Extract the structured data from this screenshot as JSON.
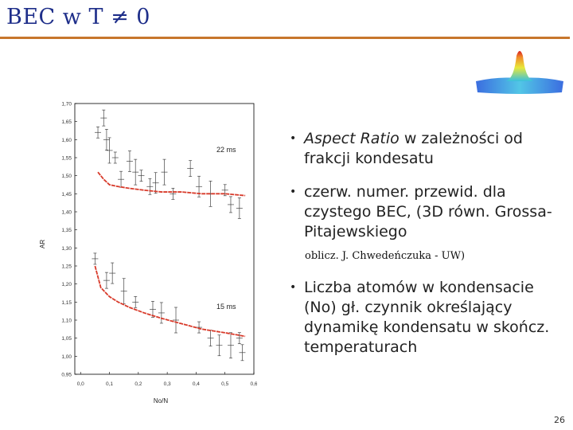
{
  "slide": {
    "title": "BEC w T ≠ 0",
    "page_number": "26",
    "colors": {
      "title": "#1f2f8a",
      "rule": "#c7762c",
      "fit_line": "#d83a2a"
    }
  },
  "bullets": [
    {
      "italic": "Aspect Ratio",
      "text": " w zależności od frakcji kondesatu"
    },
    {
      "text": "czerw. numer. przewid. dla czystego BEC, (3D równ. Grossa-Pitajewskiego"
    },
    {
      "text": "Liczba atomów w kondensacie (No) gł. czynnik określający dynamikę kondensatu w skończ. temperaturach"
    }
  ],
  "credit": "oblicz. J. Chwedeńczuka - UW)",
  "chart_data": {
    "type": "scatter",
    "xlabel": "No/N",
    "ylabel": "AR",
    "xlim": [
      -0.02,
      0.6
    ],
    "ylim": [
      0.95,
      1.7
    ],
    "x_ticks": [
      "0,0",
      "0,1",
      "0,2",
      "0,3",
      "0,4",
      "0,5",
      "0,6"
    ],
    "y_ticks": [
      "0,95",
      "1,00",
      "1,05",
      "1,10",
      "1,15",
      "1,20",
      "1,25",
      "1,30",
      "1,35",
      "1,40",
      "1,45",
      "1,50",
      "1,55",
      "1,60",
      "1,65",
      "1,70"
    ],
    "annotations": [
      "22 ms",
      "15 ms"
    ],
    "series": [
      {
        "points": [
          [
            0.06,
            1.62
          ],
          [
            0.08,
            1.66
          ],
          [
            0.09,
            1.6
          ],
          [
            0.1,
            1.57
          ],
          [
            0.12,
            1.55
          ],
          [
            0.14,
            1.49
          ],
          [
            0.17,
            1.54
          ],
          [
            0.19,
            1.51
          ],
          [
            0.21,
            1.5
          ],
          [
            0.24,
            1.47
          ],
          [
            0.26,
            1.48
          ],
          [
            0.29,
            1.51
          ],
          [
            0.32,
            1.45
          ],
          [
            0.38,
            1.52
          ],
          [
            0.41,
            1.47
          ],
          [
            0.45,
            1.45
          ],
          [
            0.5,
            1.46
          ],
          [
            0.52,
            1.42
          ],
          [
            0.55,
            1.41
          ]
        ]
      },
      {
        "points": [
          [
            0.05,
            1.27
          ],
          [
            0.09,
            1.21
          ],
          [
            0.11,
            1.23
          ],
          [
            0.15,
            1.18
          ],
          [
            0.19,
            1.15
          ],
          [
            0.25,
            1.13
          ],
          [
            0.28,
            1.12
          ],
          [
            0.33,
            1.1
          ],
          [
            0.41,
            1.08
          ],
          [
            0.45,
            1.05
          ],
          [
            0.48,
            1.03
          ],
          [
            0.52,
            1.03
          ],
          [
            0.55,
            1.05
          ],
          [
            0.56,
            1.01
          ]
        ]
      }
    ],
    "fits": [
      {
        "x": [
          0.06,
          0.08,
          0.1,
          0.13,
          0.17,
          0.22,
          0.28,
          0.35,
          0.42,
          0.5,
          0.57
        ],
        "y": [
          1.51,
          1.49,
          1.475,
          1.47,
          1.465,
          1.46,
          1.455,
          1.455,
          1.45,
          1.45,
          1.445
        ]
      },
      {
        "x": [
          0.05,
          0.07,
          0.1,
          0.13,
          0.17,
          0.22,
          0.28,
          0.35,
          0.42,
          0.5,
          0.57
        ],
        "y": [
          1.25,
          1.19,
          1.165,
          1.15,
          1.135,
          1.12,
          1.105,
          1.09,
          1.075,
          1.065,
          1.055
        ]
      }
    ]
  }
}
